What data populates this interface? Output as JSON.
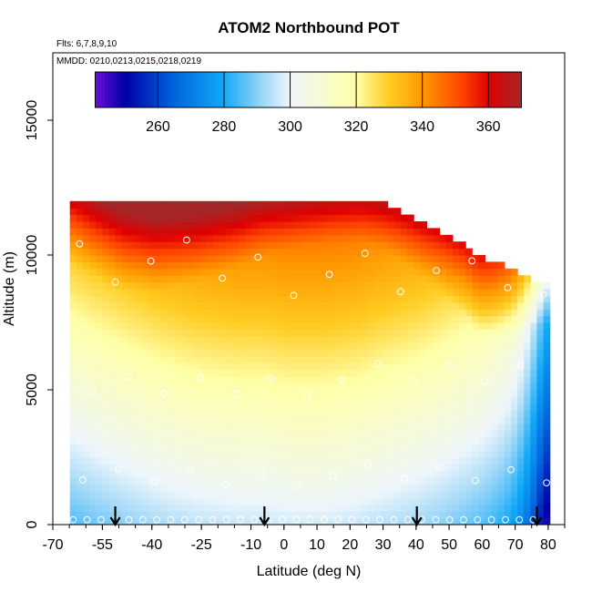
{
  "chart_data": {
    "type": "heatmap",
    "title": "ATOM2 Northbound POT",
    "flights_label": "Flts: 6,7,8,9,10",
    "dates_label": "MMDD: 0210,0213,0215,0218,0219",
    "xlabel": "Latitude (deg N)",
    "ylabel": "Altitude (m)",
    "xlim": [
      -70,
      85
    ],
    "ylim": [
      0,
      17500
    ],
    "x_ticks": [
      -70,
      -55,
      -40,
      -25,
      -10,
      0,
      10,
      20,
      30,
      40,
      50,
      60,
      70,
      80
    ],
    "y_ticks": [
      0,
      5000,
      10000,
      15000
    ],
    "colorbar": {
      "range": [
        241,
        370
      ],
      "ticks": [
        260,
        280,
        300,
        320,
        340,
        360
      ],
      "colors": [
        "#6a0fd8",
        "#0000a8",
        "#0066dd",
        "#11aaf8",
        "#a0d8f8",
        "#eef6fb",
        "#ffffa8",
        "#ffcc22",
        "#ff9900",
        "#ff4400",
        "#e00000",
        "#a52626"
      ],
      "color_stops": [
        241,
        250,
        265,
        280,
        292,
        300,
        320,
        330,
        340,
        352,
        360,
        370
      ]
    },
    "profile_arrows_lat": [
      -54,
      -8,
      39,
      76
    ],
    "field": {
      "lat_range": [
        -68,
        80
      ],
      "top_altitude": [
        [
          -68,
          12000
        ],
        [
          -66,
          12000
        ],
        [
          -64,
          12000
        ],
        [
          -62,
          12000
        ],
        [
          -44,
          12000
        ],
        [
          -28,
          12000
        ],
        [
          -10,
          12000
        ],
        [
          0,
          12000
        ],
        [
          10,
          12000
        ],
        [
          20,
          12000
        ],
        [
          26,
          12000
        ],
        [
          30,
          11750
        ],
        [
          34,
          11500
        ],
        [
          38,
          11250
        ],
        [
          42,
          11000
        ],
        [
          46,
          10750
        ],
        [
          50,
          10500
        ],
        [
          54,
          10250
        ],
        [
          60,
          9750
        ],
        [
          66,
          9500
        ],
        [
          70,
          9250
        ],
        [
          74,
          9000
        ],
        [
          80,
          8750
        ]
      ],
      "surface_potential_temperature": [
        [
          -68,
          285
        ],
        [
          -62,
          287
        ],
        [
          -52,
          290
        ],
        [
          -40,
          293
        ],
        [
          -28,
          295
        ],
        [
          -16,
          296
        ],
        [
          -8,
          296
        ],
        [
          0,
          297
        ],
        [
          10,
          297
        ],
        [
          20,
          296
        ],
        [
          30,
          294
        ],
        [
          40,
          292
        ],
        [
          50,
          289
        ],
        [
          60,
          285
        ],
        [
          66,
          281
        ],
        [
          70,
          276
        ],
        [
          74,
          266
        ],
        [
          77,
          254
        ],
        [
          80,
          244
        ]
      ],
      "tropopause_altitude": [
        [
          -68,
          9700
        ],
        [
          -62,
          9300
        ],
        [
          -52,
          8700
        ],
        [
          -42,
          8600
        ],
        [
          -30,
          9000
        ],
        [
          -18,
          9500
        ],
        [
          -8,
          10000
        ],
        [
          2,
          10300
        ],
        [
          12,
          10500
        ],
        [
          22,
          10500
        ],
        [
          30,
          10100
        ],
        [
          36,
          9600
        ],
        [
          42,
          9000
        ],
        [
          48,
          8400
        ],
        [
          54,
          7700
        ],
        [
          58,
          7000
        ],
        [
          62,
          6800
        ],
        [
          68,
          6800
        ],
        [
          74,
          7200
        ],
        [
          80,
          7600
        ]
      ]
    }
  }
}
